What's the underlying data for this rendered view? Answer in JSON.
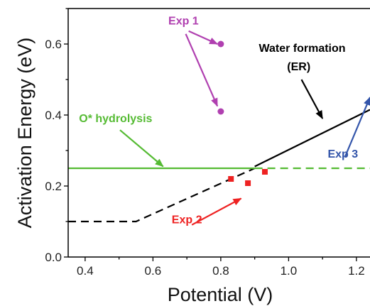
{
  "chart_data": {
    "type": "line",
    "xlabel": "Potential (V)",
    "ylabel": "Activation Energy (eV)",
    "xlim": [
      0.35,
      1.24
    ],
    "ylim": [
      0.0,
      0.7
    ],
    "x_ticks": [
      0.4,
      0.6,
      0.8,
      1.0,
      1.2
    ],
    "x_tick_labels": [
      "0.4",
      "0.6",
      "0.8",
      "1.0",
      "1.2"
    ],
    "y_ticks": [
      0.0,
      0.2,
      0.4,
      0.6
    ],
    "y_tick_labels": [
      "0.0",
      "0.2",
      "0.4",
      "0.6"
    ],
    "grid": false,
    "legend": "none",
    "series": [
      {
        "style": "dashed",
        "color": "#000000",
        "points": [
          [
            0.35,
            0.1
          ],
          [
            0.55,
            0.1
          ],
          [
            0.9,
            0.25
          ]
        ]
      },
      {
        "style": "solid",
        "color": "#000000",
        "points": [
          [
            0.9,
            0.255
          ],
          [
            1.24,
            0.415
          ]
        ]
      },
      {
        "style": "solid",
        "color": "#55bb33",
        "points": [
          [
            0.35,
            0.25
          ],
          [
            0.9,
            0.25
          ]
        ]
      },
      {
        "style": "dashed",
        "color": "#55bb33",
        "points": [
          [
            0.9,
            0.25
          ],
          [
            1.24,
            0.25
          ]
        ]
      },
      {
        "style": "markers",
        "marker": "circle",
        "color": "#b040b0",
        "points": [
          [
            0.8,
            0.6
          ],
          [
            0.8,
            0.41
          ]
        ]
      },
      {
        "style": "markers",
        "marker": "square",
        "color": "#ee2222",
        "points": [
          [
            0.83,
            0.22
          ],
          [
            0.88,
            0.208
          ],
          [
            0.93,
            0.24
          ]
        ]
      }
    ],
    "annotations": [
      {
        "text": "Exp 1",
        "color": "#b040b0",
        "x": 0.69,
        "y": 0.655,
        "arrows_to": [
          [
            0.79,
            0.6
          ],
          [
            0.79,
            0.425
          ]
        ]
      },
      {
        "text": "Water formation",
        "color": "#000000",
        "x": 1.04,
        "y": 0.578,
        "arrows_to": []
      },
      {
        "text": "(ER)",
        "color": "#000000",
        "x": 1.03,
        "y": 0.526,
        "arrows_to": [
          [
            1.1,
            0.39
          ]
        ]
      },
      {
        "text": "O* hydrolysis",
        "color": "#55bb33",
        "x": 0.49,
        "y": 0.38,
        "arrows_to": [
          [
            0.63,
            0.255
          ]
        ]
      },
      {
        "text": "Exp 2",
        "color": "#ee2222",
        "x": 0.7,
        "y": 0.095,
        "arrows_to": [
          [
            0.86,
            0.165
          ]
        ]
      },
      {
        "text": "Exp 3",
        "color": "#3355aa",
        "x": 1.16,
        "y": 0.28,
        "arrows_to": [
          [
            1.24,
            0.45
          ]
        ]
      }
    ]
  }
}
